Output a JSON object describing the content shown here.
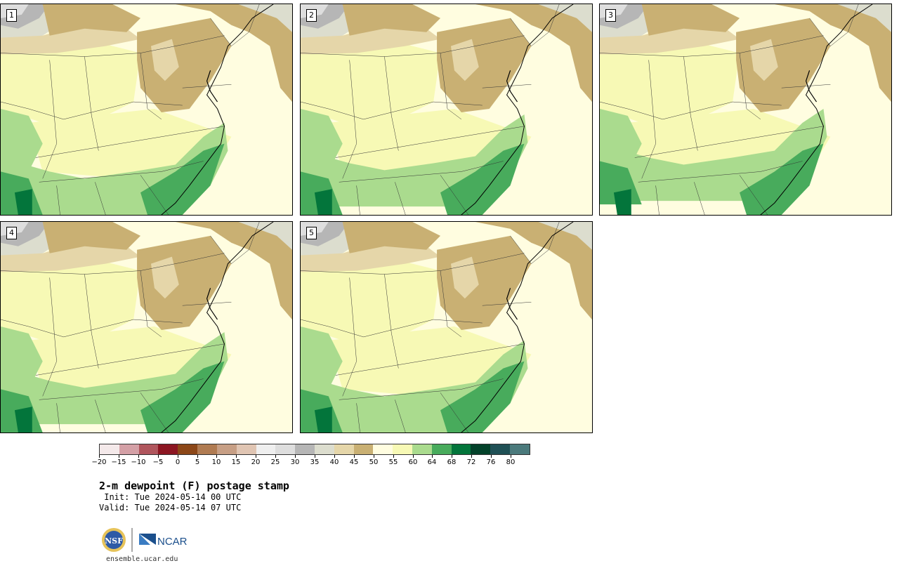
{
  "panels": [
    {
      "number": "1",
      "variant": 0
    },
    {
      "number": "2",
      "variant": 1
    },
    {
      "number": "3",
      "variant": 2
    },
    {
      "number": "4",
      "variant": 1
    },
    {
      "number": "5",
      "variant": 0
    }
  ],
  "colorbar": {
    "colors": [
      "#f4e9ea",
      "#d4a0a6",
      "#b0565d",
      "#8c1622",
      "#8c4718",
      "#b07b52",
      "#c79f85",
      "#e0c5b3",
      "#efefef",
      "#dedede",
      "#b6b6b6",
      "#dcddce",
      "#e5d6a9",
      "#c9b073",
      "#fffde0",
      "#f7f9b5",
      "#aadb8e",
      "#48ab5c",
      "#03753b",
      "#03422a",
      "#1f5055",
      "#4b7a7c"
    ],
    "labels": [
      "−20",
      "−15",
      "−10",
      "−5",
      "0",
      "5",
      "10",
      "15",
      "20",
      "25",
      "30",
      "35",
      "40",
      "45",
      "50",
      "55",
      "60",
      "64",
      "68",
      "72",
      "76",
      "80"
    ]
  },
  "title": "2-m dewpoint (F) postage stamp",
  "init_text": " Init: Tue 2024-05-14 00 UTC",
  "valid_text": "Valid: Tue 2024-05-14 07 UTC",
  "logos": {
    "nsf": "NSF",
    "ncar": "NCAR"
  },
  "site": "ensemble.ucar.edu"
}
